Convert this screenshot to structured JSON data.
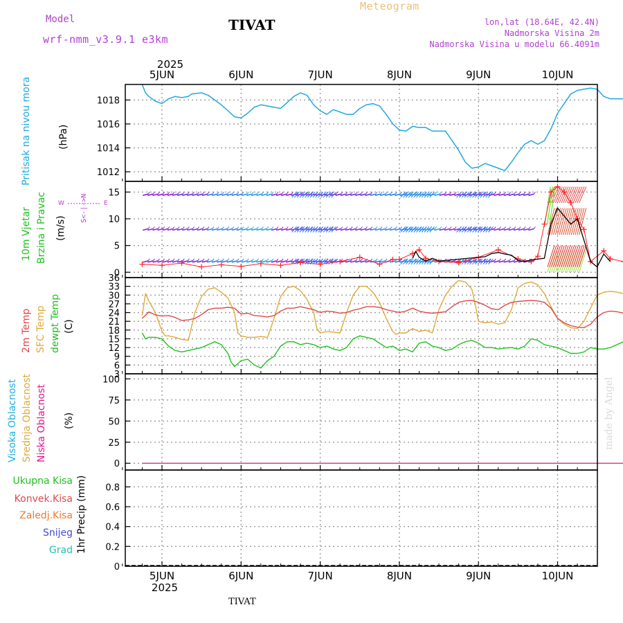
{
  "header": {
    "model_label": "Model",
    "model_name": "wrf-nmm_v3.9.1 e3km",
    "station": "TIVAT",
    "meteogram": "Meteogram",
    "location": "lon,lat (18.64E, 42.4N)",
    "elevation": "Nadmorska Visina 2m",
    "model_elevation": "Nadmorska Visina u modelu 66.4091m",
    "credit": "made by Angel",
    "footer_station": "TIVAT"
  },
  "time_axis": {
    "year": "2025",
    "days": [
      "5JUN",
      "6JUN",
      "7JUN",
      "8JUN",
      "9JUN",
      "10JUN"
    ]
  },
  "panel_labels": {
    "pressure": {
      "title": "Pritisak na nivou mora",
      "unit": "(hPa)"
    },
    "wind": {
      "title1": "10m Vjetar",
      "title2": "Brzina i Pravac",
      "unit": "(m/s)",
      "compass_ns": "S<-|->N",
      "compass_w": "W",
      "compass_e": "E"
    },
    "temp": {
      "t2m": "2m Temp",
      "sfc": "SFC Temp",
      "dew": "dewpt Temp",
      "unit": "(C)"
    },
    "cloud": {
      "high": "Visoka Oblacnost",
      "mid": "Srednja Oblacnost",
      "low": "Niska Oblacnost",
      "unit": "(%)"
    },
    "precip": {
      "total": "Ukupna Kisa",
      "conv": "Konvek.Kisa",
      "frozen": "Zaledj.Kisa",
      "snow": "Snijeg",
      "hail": "Grad",
      "unit": "1hr Precip (mm)"
    }
  },
  "colors": {
    "pressure": "#1ea8e0",
    "t2m": "#e04848",
    "sfc": "#e0a838",
    "dew": "#20c020",
    "gust": "#ff2020",
    "cloud_low": "#e01890",
    "cloud_mid": "#e0a838",
    "cloud_high": "#20b0e0"
  },
  "chart_data": [
    {
      "type": "line",
      "title": "Pritisak na nivou mora",
      "ylabel": "(hPa)",
      "x_unit": "hours from 5 Jun 2025 00:00",
      "ylim": [
        1011.2,
        1019.3
      ],
      "yticks": [
        1012,
        1014,
        1016,
        1018
      ],
      "series": [
        {
          "name": "pressure",
          "x": [
            -6,
            -5,
            -4,
            -2,
            0,
            2,
            4,
            6,
            8,
            9,
            12,
            14,
            16,
            18,
            20,
            22,
            24,
            26,
            28,
            30,
            32,
            36,
            38,
            40,
            42,
            44,
            46,
            48,
            50,
            52,
            54,
            56,
            58,
            60,
            62,
            64,
            66,
            68,
            70,
            72,
            74,
            76,
            78,
            80,
            82,
            84,
            86,
            88,
            90,
            92,
            94,
            96,
            98,
            100,
            102,
            104,
            106,
            108,
            110,
            112,
            114,
            116,
            118,
            120,
            122,
            124,
            126,
            128,
            130,
            132,
            134,
            136,
            138,
            140,
            141
          ],
          "values": [
            1019.3,
            1018.6,
            1018.3,
            1017.9,
            1017.7,
            1018.1,
            1018.3,
            1018.2,
            1018.3,
            1018.5,
            1018.6,
            1018.4,
            1018.0,
            1017.6,
            1017.1,
            1016.6,
            1016.5,
            1016.9,
            1017.4,
            1017.6,
            1017.5,
            1017.3,
            1017.8,
            1018.3,
            1018.6,
            1018.4,
            1017.6,
            1017.1,
            1016.8,
            1017.2,
            1017.0,
            1016.8,
            1016.8,
            1017.3,
            1017.6,
            1017.7,
            1017.5,
            1016.8,
            1016.0,
            1015.5,
            1015.4,
            1015.8,
            1015.7,
            1015.7,
            1015.4,
            1015.4,
            1015.4,
            1014.6,
            1013.8,
            1012.8,
            1012.3,
            1012.4,
            1012.7,
            1012.5,
            1012.3,
            1012.1,
            1012.8,
            1013.6,
            1014.3,
            1014.6,
            1014.3,
            1014.6,
            1015.6,
            1016.9,
            1017.7,
            1018.5,
            1018.8,
            1018.9,
            1019.0,
            1018.9,
            1018.3,
            1018.1,
            1018.1,
            1018.1,
            1018.1
          ]
        }
      ]
    },
    {
      "type": "line",
      "title": "10m Vjetar Brzina i Pravac",
      "ylabel": "(m/s)",
      "x_unit": "hours from 5 Jun 2025 00:00",
      "ylim": [
        -1,
        17
      ],
      "yticks": [
        0,
        5,
        10,
        15
      ],
      "series": [
        {
          "name": "wind speed",
          "x": [
            76,
            77,
            78,
            80,
            82,
            84,
            98,
            100,
            102,
            104,
            106,
            108,
            110,
            112,
            116,
            118,
            120,
            122,
            124,
            126,
            128,
            130,
            132,
            134,
            136
          ],
          "values": [
            2.6,
            3.9,
            2.8,
            2.1,
            2.6,
            2.1,
            2.9,
            3.5,
            3.7,
            3.4,
            3.2,
            2.2,
            2.0,
            2.3,
            2.6,
            9.0,
            12.0,
            10.5,
            9.0,
            10.0,
            6.0,
            2.0,
            1.0,
            3.4,
            2.0
          ]
        },
        {
          "name": "gusts",
          "x": [
            -6,
            0,
            6,
            12,
            18,
            24,
            30,
            36,
            42,
            48,
            54,
            60,
            66,
            70,
            72,
            76,
            78,
            80,
            84,
            90,
            96,
            102,
            108,
            112,
            114,
            116,
            118,
            120,
            122,
            124,
            126,
            128,
            130,
            134,
            136,
            140
          ],
          "values": [
            1.5,
            1.3,
            1.7,
            1.0,
            1.4,
            1.1,
            1.6,
            1.3,
            1.8,
            1.5,
            2.0,
            2.8,
            1.5,
            2.4,
            2.4,
            3.5,
            4.2,
            2.6,
            2.0,
            1.8,
            2.8,
            4.2,
            2.5,
            2.0,
            3.0,
            9.0,
            15.0,
            16.0,
            15.0,
            13.0,
            10.0,
            8.0,
            2.0,
            4.0,
            2.5,
            2.0
          ]
        }
      ],
      "barb_rows": [
        2,
        8,
        14.5
      ]
    },
    {
      "type": "line",
      "title": "Temperatures",
      "ylabel": "(C)",
      "x_unit": "hours from 5 Jun 2025 00:00",
      "ylim": [
        3,
        36
      ],
      "yticks": [
        3,
        6,
        9,
        12,
        15,
        18,
        21,
        24,
        27,
        30,
        33,
        36
      ],
      "series": [
        {
          "name": "2m Temp",
          "x": [
            -6,
            -4,
            -2,
            0,
            2,
            4,
            6,
            8,
            10,
            12,
            14,
            16,
            18,
            20,
            22,
            24,
            26,
            28,
            30,
            32,
            34,
            36,
            38,
            40,
            42,
            44,
            46,
            48,
            50,
            52,
            54,
            56,
            58,
            60,
            62,
            64,
            66,
            68,
            70,
            72,
            74,
            76,
            78,
            80,
            82,
            84,
            86,
            88,
            90,
            92,
            94,
            96,
            98,
            100,
            102,
            104,
            106,
            108,
            110,
            112,
            114,
            116,
            118,
            120,
            122,
            124,
            126,
            128,
            130,
            132,
            134,
            136,
            138,
            140,
            141
          ],
          "values": [
            22.0,
            24.2,
            23.2,
            22.8,
            23.0,
            22.3,
            21.3,
            21.5,
            22.0,
            23.3,
            25.0,
            25.5,
            25.5,
            25.8,
            25.5,
            23.5,
            23.8,
            23.0,
            22.8,
            22.5,
            23.0,
            24.5,
            25.5,
            25.5,
            26.0,
            25.5,
            25.0,
            24.0,
            24.5,
            24.3,
            23.8,
            24.0,
            24.8,
            25.3,
            26.0,
            26.0,
            25.8,
            25.0,
            24.5,
            24.0,
            24.5,
            25.5,
            24.5,
            24.0,
            23.8,
            24.0,
            24.3,
            26.0,
            27.5,
            28.0,
            28.2,
            27.5,
            26.5,
            25.3,
            25.0,
            26.5,
            27.5,
            27.8,
            28.0,
            28.2,
            28.0,
            27.5,
            25.5,
            22.0,
            20.5,
            19.5,
            19.0,
            18.8,
            20.0,
            22.5,
            24.0,
            24.5,
            24.3,
            23.8,
            23.5
          ]
        },
        {
          "name": "SFC Temp",
          "x": [
            -6,
            -5,
            -4,
            -2,
            0,
            1,
            2,
            4,
            6,
            8,
            10,
            12,
            14,
            16,
            18,
            20,
            22,
            23,
            24,
            26,
            28,
            30,
            32,
            34,
            36,
            38,
            40,
            42,
            44,
            46,
            47,
            48,
            50,
            52,
            54,
            56,
            58,
            60,
            62,
            64,
            66,
            68,
            70,
            71,
            72,
            74,
            76,
            78,
            80,
            82,
            84,
            86,
            88,
            90,
            92,
            94,
            95,
            96,
            98,
            100,
            102,
            104,
            106,
            108,
            110,
            112,
            114,
            116,
            118,
            120,
            122,
            124,
            126,
            128,
            130,
            132,
            134,
            136,
            138,
            140,
            141
          ],
          "values": [
            23.0,
            30.5,
            28.0,
            24.0,
            17.5,
            16.0,
            16.0,
            15.5,
            14.8,
            14.5,
            24.0,
            29.5,
            32.0,
            32.5,
            31.0,
            29.0,
            24.0,
            17.0,
            16.0,
            15.5,
            15.5,
            15.8,
            15.5,
            22.0,
            29.5,
            32.5,
            33.0,
            31.5,
            28.5,
            24.0,
            18.5,
            17.0,
            17.5,
            17.3,
            17.0,
            24.0,
            30.0,
            33.0,
            33.0,
            31.0,
            27.5,
            22.0,
            17.5,
            16.5,
            17.0,
            17.0,
            18.5,
            17.5,
            18.0,
            17.0,
            25.0,
            30.0,
            33.0,
            35.0,
            34.5,
            32.0,
            27.0,
            21.0,
            20.5,
            20.8,
            20.0,
            20.5,
            25.0,
            32.5,
            34.0,
            34.5,
            33.5,
            30.5,
            26.0,
            22.0,
            20.0,
            18.8,
            18.5,
            21.0,
            25.5,
            30.0,
            31.0,
            31.3,
            31.0,
            30.5,
            30.5
          ]
        },
        {
          "name": "dewpt Temp",
          "x": [
            -6,
            -5,
            -4,
            -2,
            0,
            2,
            4,
            6,
            8,
            10,
            12,
            14,
            16,
            18,
            20,
            21,
            22,
            24,
            26,
            28,
            30,
            32,
            34,
            36,
            38,
            40,
            42,
            44,
            46,
            48,
            50,
            52,
            54,
            56,
            58,
            60,
            62,
            64,
            66,
            68,
            70,
            72,
            74,
            76,
            78,
            80,
            82,
            84,
            86,
            88,
            90,
            92,
            94,
            96,
            98,
            100,
            102,
            104,
            106,
            108,
            110,
            112,
            114,
            116,
            118,
            120,
            122,
            124,
            126,
            128,
            130,
            132,
            134,
            136,
            138,
            140,
            141
          ],
          "values": [
            17.0,
            15.0,
            15.5,
            15.5,
            15.0,
            12.5,
            11.0,
            10.5,
            11.0,
            11.5,
            12.0,
            13.0,
            14.0,
            13.0,
            10.0,
            7.0,
            5.5,
            7.5,
            8.0,
            6.0,
            5.0,
            7.5,
            9.0,
            12.5,
            14.0,
            14.0,
            13.0,
            13.5,
            13.0,
            12.0,
            12.5,
            11.5,
            11.0,
            12.0,
            15.0,
            16.0,
            15.5,
            15.0,
            13.5,
            12.0,
            12.5,
            11.0,
            11.5,
            10.5,
            13.5,
            14.0,
            12.5,
            12.0,
            11.0,
            11.5,
            13.0,
            14.0,
            14.5,
            13.5,
            12.0,
            12.0,
            11.5,
            11.8,
            12.0,
            11.5,
            12.5,
            15.0,
            14.5,
            13.0,
            12.5,
            12.0,
            11.0,
            10.0,
            10.0,
            10.5,
            12.0,
            11.5,
            11.5,
            12.0,
            13.0,
            14.0,
            14.5
          ]
        }
      ]
    },
    {
      "type": "line",
      "title": "Oblacnost",
      "ylabel": "(%)",
      "ylim": [
        -8,
        106
      ],
      "yticks": [
        0,
        25,
        50,
        75,
        100
      ],
      "series": [
        {
          "name": "Visoka Oblacnost",
          "x": [
            -6,
            141
          ],
          "values": [
            0,
            0
          ]
        },
        {
          "name": "Srednja Oblacnost",
          "x": [
            -6,
            141
          ],
          "values": [
            0,
            0
          ]
        },
        {
          "name": "Niska Oblacnost",
          "x": [
            -6,
            141
          ],
          "values": [
            0,
            0
          ]
        }
      ]
    },
    {
      "type": "bar",
      "title": "1hr Precip",
      "ylabel": "1hr Precip (mm)",
      "ylim": [
        0,
        0.97
      ],
      "yticks": [
        "0",
        "0.2",
        "0.4",
        "0.6",
        "0.8"
      ],
      "series": [
        {
          "name": "Ukupna Kisa",
          "values": [
            0
          ]
        }
      ]
    }
  ]
}
